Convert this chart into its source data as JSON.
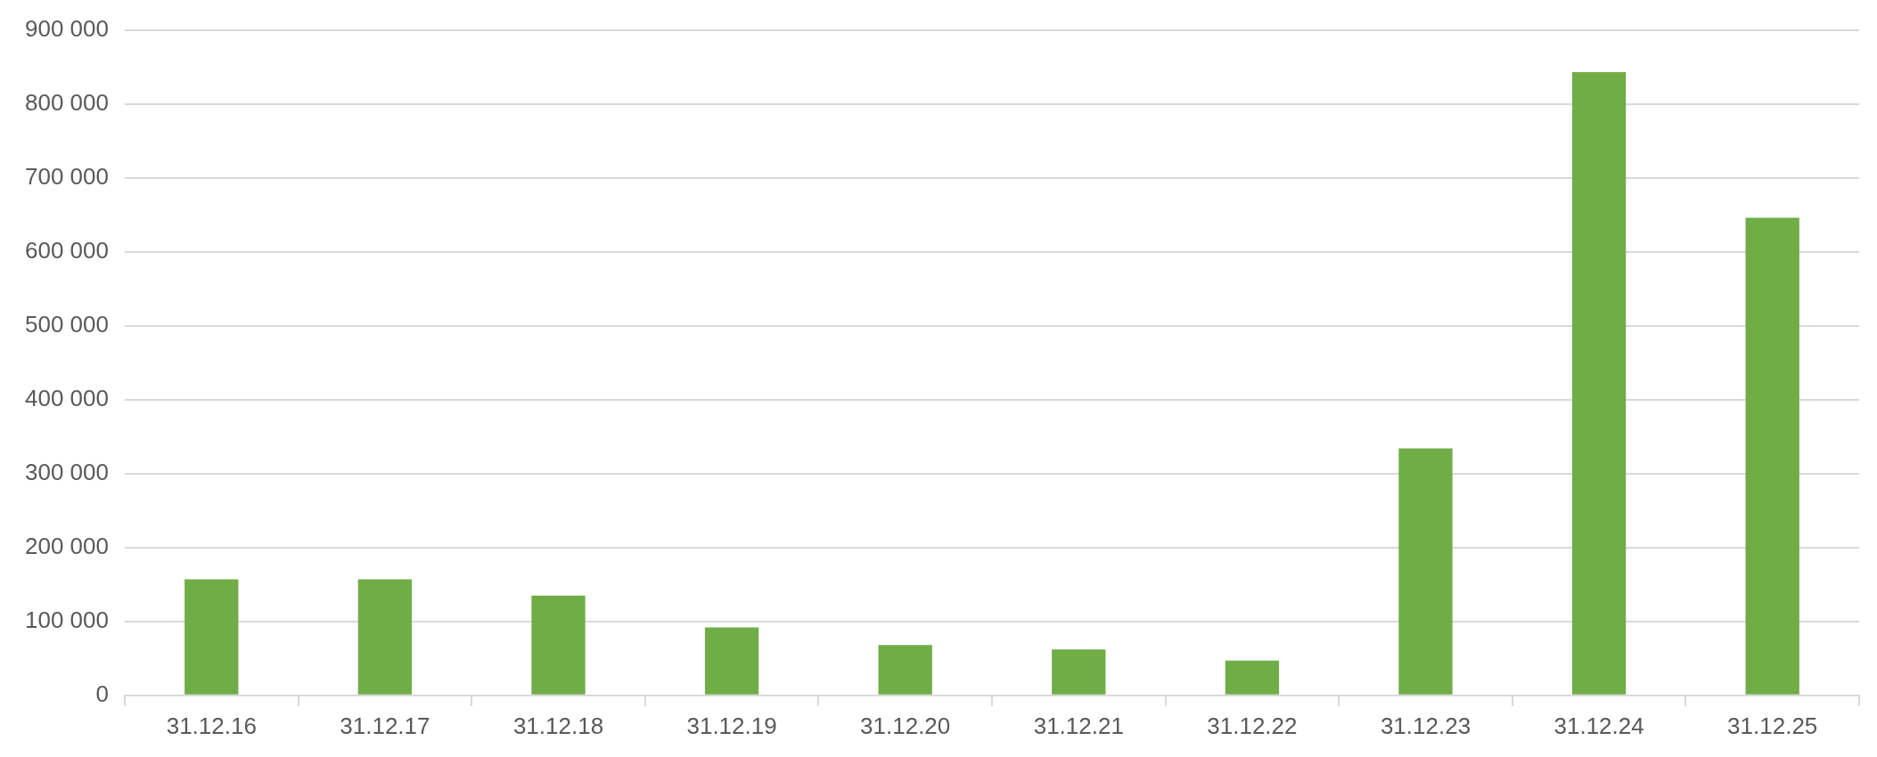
{
  "chart_data": {
    "type": "bar",
    "categories": [
      "31.12.16",
      "31.12.17",
      "31.12.18",
      "31.12.19",
      "31.12.20",
      "31.12.21",
      "31.12.22",
      "31.12.23",
      "31.12.24",
      "31.12.25"
    ],
    "values": [
      157000,
      157000,
      135000,
      92000,
      68000,
      62000,
      47000,
      334000,
      843000,
      646000
    ],
    "color": "#70ad47",
    "ylim": [
      0,
      900000
    ],
    "yticks": [
      {
        "value": 0,
        "label": "0"
      },
      {
        "value": 100000,
        "label": "100 000"
      },
      {
        "value": 200000,
        "label": "200 000"
      },
      {
        "value": 300000,
        "label": "300 000"
      },
      {
        "value": 400000,
        "label": "400 000"
      },
      {
        "value": 500000,
        "label": "500 000"
      },
      {
        "value": 600000,
        "label": "600 000"
      },
      {
        "value": 700000,
        "label": "700 000"
      },
      {
        "value": 800000,
        "label": "800 000"
      },
      {
        "value": 900000,
        "label": "900 000"
      }
    ],
    "grid": "y"
  }
}
